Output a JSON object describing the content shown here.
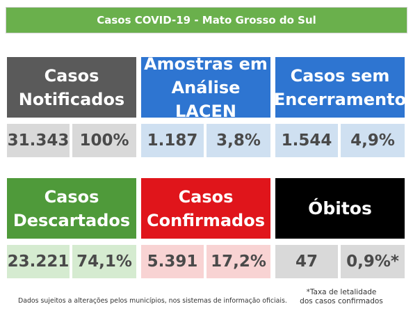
{
  "title": "Casos COVID-19 - Mato Grosso do Sul",
  "cards": [
    {
      "heading": "Casos\nNotificados",
      "value": "31.343",
      "percent": "100%",
      "head_color": "#5a5a5a",
      "cell_color": "#d9d9d9"
    },
    {
      "heading": "Amostras em\nAnálise LACEN",
      "value": "1.187",
      "percent": "3,8%",
      "head_color": "#2e75d1",
      "cell_color": "#cfe0f1"
    },
    {
      "heading": "Casos sem\nEncerramento",
      "value": "1.544",
      "percent": "4,9%",
      "head_color": "#2e75d1",
      "cell_color": "#cfe0f1"
    },
    {
      "heading": "Casos\nDescartados",
      "value": "23.221",
      "percent": "74,1%",
      "head_color": "#4f9a3a",
      "cell_color": "#d5ebd0"
    },
    {
      "heading": "Casos\nConfirmados",
      "value": "5.391",
      "percent": "17,2%",
      "head_color": "#e0151b",
      "cell_color": "#f8d3d3"
    },
    {
      "heading": "Óbitos",
      "value": "47",
      "percent": "0,9%*",
      "head_color": "#000000",
      "cell_color": "#d9d9d9"
    }
  ],
  "footnote_left": "Dados sujeitos a alterações pelos municípios, nos sistemas de informação oficiais.",
  "footnote_right": "*Taxa de letalidade\ndos casos confirmados"
}
